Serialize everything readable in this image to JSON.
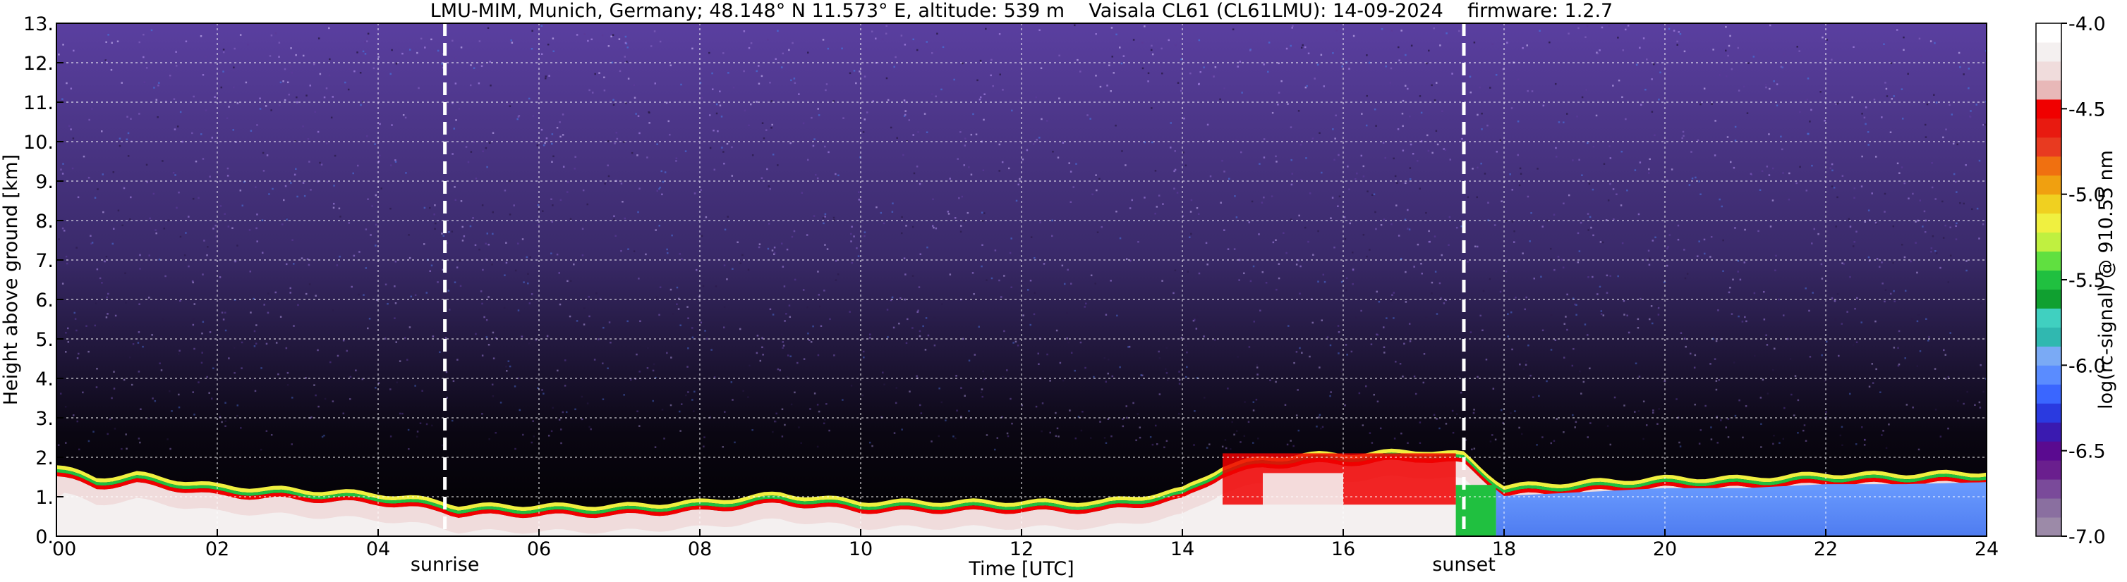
{
  "chart_data": {
    "type": "heatmap",
    "title": "LMU-MIM, Munich, Germany; 48.148° N 11.573° E, altitude: 539 m    Vaisala CL61 (CL61LMU): 14-09-2024    firmware: 1.2.7",
    "xlabel": "Time [UTC]",
    "ylabel": "Height above ground [km]",
    "xlim": [
      0,
      24
    ],
    "ylim": [
      0,
      13
    ],
    "x_ticks": [
      "00",
      "02",
      "04",
      "06",
      "08",
      "10",
      "12",
      "14",
      "16",
      "18",
      "20",
      "22",
      "24"
    ],
    "y_ticks": [
      "0.",
      "1.",
      "2.",
      "3.",
      "4.",
      "5.",
      "6.",
      "7.",
      "8.",
      "9.",
      "10.",
      "11.",
      "12.",
      "13."
    ],
    "grid": true,
    "annotations": [
      {
        "label": "sunrise",
        "x": 4.83
      },
      {
        "label": "sunset",
        "x": 17.5
      }
    ],
    "colorbar": {
      "label": "log(rc-signal) @ 910.55 nm",
      "range": [
        -7.0,
        -4.0
      ],
      "ticks": [
        "-4.0",
        "-4.5",
        "-5.0",
        "-5.5",
        "-6.0",
        "-6.5",
        "-7.0"
      ],
      "colors": [
        "#9c8aa8",
        "#8a6fa0",
        "#7a4a9a",
        "#6a1f8e",
        "#5a0a90",
        "#3a1ab0",
        "#2a3ae0",
        "#3a66ff",
        "#5a8cff",
        "#7aaaf5",
        "#30b8b0",
        "#40d0c0",
        "#10a030",
        "#20c040",
        "#60e040",
        "#c0f040",
        "#f0f040",
        "#f0d020",
        "#f0a010",
        "#f07010",
        "#e83a20",
        "#e81a10",
        "#f00000",
        "#e8b8b8",
        "#f0dcdc",
        "#f4f0f0",
        "#ffffff"
      ]
    },
    "cloud_base_profile": {
      "x": [
        0,
        0.5,
        1,
        2,
        3,
        4,
        4.8,
        5,
        6,
        7,
        8,
        9,
        10,
        11,
        12,
        13,
        14,
        14.5,
        15,
        15.5,
        16,
        16.5,
        17,
        17.5,
        18,
        19,
        20,
        21,
        22,
        23,
        24
      ],
      "y": [
        1.8,
        1.5,
        1.6,
        1.3,
        1.2,
        1.1,
        0.9,
        0.8,
        0.8,
        0.8,
        0.9,
        1.1,
        0.9,
        0.9,
        0.9,
        0.9,
        1.2,
        1.8,
        2.0,
        2.1,
        2.1,
        2.15,
        2.2,
        2.1,
        1.3,
        1.4,
        1.5,
        1.5,
        1.6,
        1.6,
        1.65
      ]
    }
  }
}
